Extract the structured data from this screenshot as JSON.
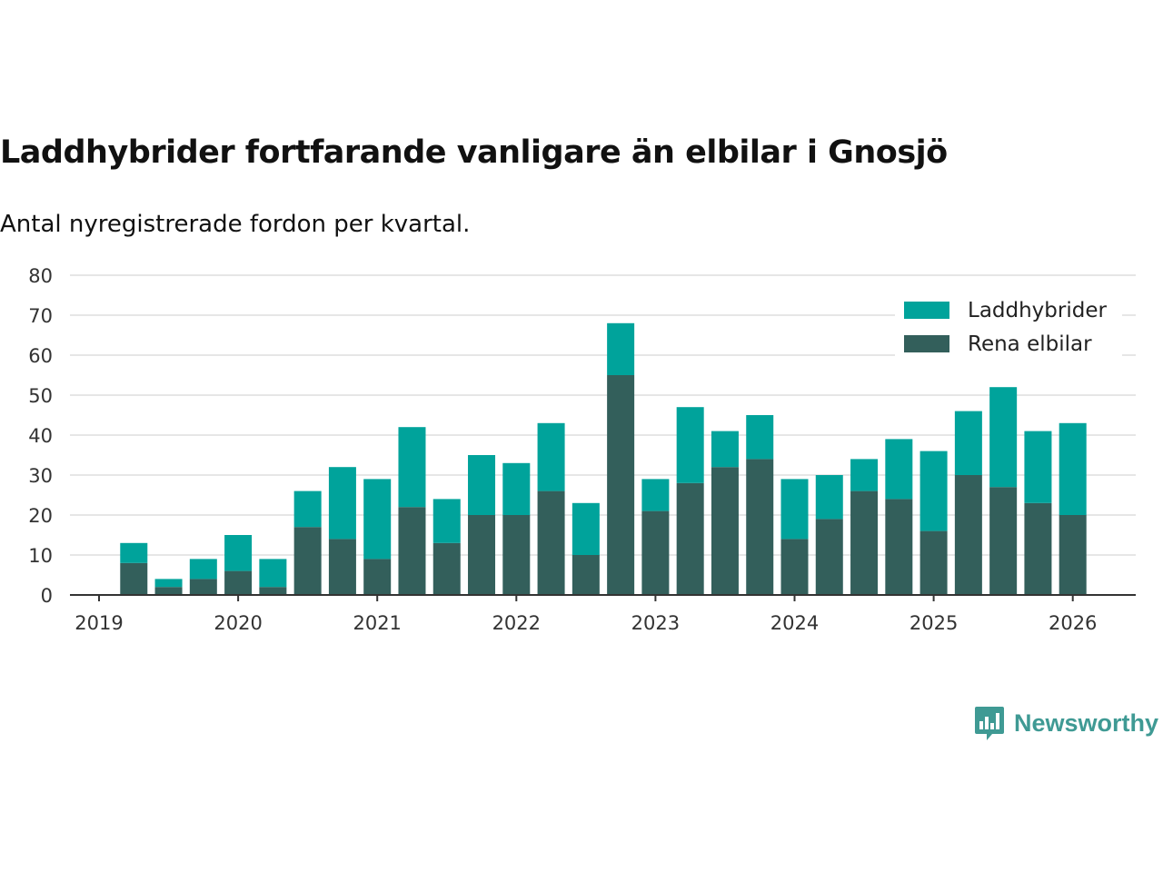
{
  "title": "Laddhybrider fortfarande vanligare än elbilar i Gnosjö",
  "subtitle": "Antal nyregistrerade fordon per kvartal.",
  "brand": {
    "name": "Newsworthy",
    "icon": "newsworthy-logo-icon"
  },
  "colors": {
    "laddhybrider": "#00a39b",
    "elbilar": "#335f5b",
    "grid": "#dddddd",
    "axis": "#333333"
  },
  "chart_data": {
    "type": "bar",
    "stacked": true,
    "title": "Laddhybrider fortfarande vanligare än elbilar i Gnosjö",
    "subtitle": "Antal nyregistrerade fordon per kvartal.",
    "xlabel": "",
    "ylabel": "",
    "ylim": [
      0,
      80
    ],
    "yticks": [
      0,
      10,
      20,
      30,
      40,
      50,
      60,
      70,
      80
    ],
    "xticks": [
      "2019",
      "2020",
      "2021",
      "2022",
      "2023",
      "2024",
      "2025",
      "2026"
    ],
    "grid": true,
    "legend_position": "top-right",
    "categories": [
      "2019 Q2",
      "2019 Q3",
      "2019 Q4",
      "2020 Q1",
      "2020 Q2",
      "2020 Q3",
      "2020 Q4",
      "2021 Q1",
      "2021 Q2",
      "2021 Q3",
      "2021 Q4",
      "2022 Q1",
      "2022 Q2",
      "2022 Q3",
      "2022 Q4",
      "2023 Q1",
      "2023 Q2",
      "2023 Q3",
      "2023 Q4",
      "2024 Q1",
      "2024 Q2",
      "2024 Q3",
      "2024 Q4",
      "2025 Q1",
      "2025 Q2",
      "2025 Q3",
      "2025 Q4",
      "2026 Q1"
    ],
    "series": [
      {
        "name": "Rena elbilar",
        "values": [
          8,
          2,
          4,
          6,
          2,
          17,
          14,
          9,
          22,
          13,
          20,
          20,
          26,
          10,
          55,
          21,
          28,
          32,
          34,
          14,
          19,
          26,
          24,
          16,
          30,
          27,
          23,
          20
        ]
      },
      {
        "name": "Laddhybrider",
        "values": [
          5,
          2,
          5,
          9,
          7,
          9,
          18,
          20,
          20,
          11,
          15,
          13,
          17,
          13,
          13,
          8,
          19,
          9,
          11,
          15,
          11,
          8,
          15,
          20,
          16,
          25,
          18,
          23
        ]
      }
    ],
    "legend": [
      "Laddhybrider",
      "Rena elbilar"
    ]
  }
}
